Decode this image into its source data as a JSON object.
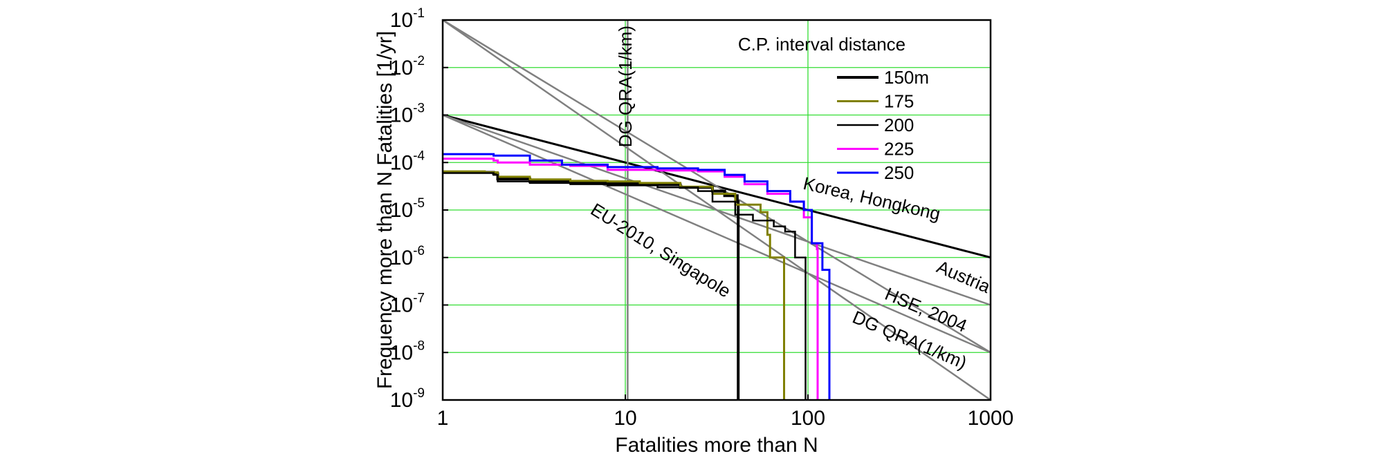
{
  "chart_data": {
    "type": "line",
    "title": "",
    "xlabel": "Fatalities more than N",
    "ylabel": "Frequency more than N Fatalities [1/yr]",
    "x_scale": "log",
    "y_scale": "log",
    "xlim": [
      1,
      1000
    ],
    "ylim": [
      1e-09,
      0.1
    ],
    "grid": true,
    "grid_color": "#33dd33",
    "x_ticks": [
      {
        "value": 1,
        "label": "1"
      },
      {
        "value": 10,
        "label": "10"
      },
      {
        "value": 100,
        "label": "100"
      },
      {
        "value": 1000,
        "label": "1000"
      }
    ],
    "y_ticks": [
      {
        "value": 1e-09,
        "base": "10",
        "exp": "-9"
      },
      {
        "value": 1e-08,
        "base": "10",
        "exp": "-8"
      },
      {
        "value": 1e-07,
        "base": "10",
        "exp": "-7"
      },
      {
        "value": 1e-06,
        "base": "10",
        "exp": "-6"
      },
      {
        "value": 1e-05,
        "base": "10",
        "exp": "-5"
      },
      {
        "value": 0.0001,
        "base": "10",
        "exp": "-4"
      },
      {
        "value": 0.001,
        "base": "10",
        "exp": "-3"
      },
      {
        "value": 0.01,
        "base": "10",
        "exp": "-2"
      },
      {
        "value": 0.1,
        "base": "10",
        "exp": "-1"
      }
    ],
    "legend": {
      "title": "C.P. interval distance",
      "placement": "top-right"
    },
    "criteria_lines": [
      {
        "label": "Korea, Hongkong",
        "color": "#000000",
        "points": [
          [
            1,
            0.001
          ],
          [
            1000,
            1e-06
          ]
        ]
      },
      {
        "label": "Austria",
        "color": "#808080",
        "points": [
          [
            1,
            0.001
          ],
          [
            1000,
            1e-07
          ]
        ]
      },
      {
        "label": "HSE, 2004",
        "color": "#808080",
        "points": [
          [
            1,
            0.1
          ],
          [
            1000,
            1e-08
          ]
        ]
      },
      {
        "label": "DG QRA(1/km)",
        "color": "#808080",
        "points": [
          [
            1,
            0.001
          ],
          [
            1000,
            1e-08
          ]
        ]
      },
      {
        "label": "EU-2010, Singapole",
        "color": "#808080",
        "points": [
          [
            1,
            0.1
          ],
          [
            1000,
            1e-09
          ]
        ]
      },
      {
        "label": "DG QRA(1/km)",
        "color": "#808080",
        "points": [
          [
            10.3,
            1e-09
          ],
          [
            10.3,
            0.1
          ]
        ]
      }
    ],
    "annotations": [
      {
        "text": "Korea, Hongkong",
        "at": [
          220,
          1.3e-05
        ],
        "angle": 13
      },
      {
        "text": "Austria",
        "at": [
          690,
          3e-07
        ],
        "angle": 23
      },
      {
        "text": "HSE, 2004",
        "at": [
          430,
          6e-08
        ],
        "angle": 23
      },
      {
        "text": "DG QRA(1/km)",
        "at": [
          350,
          1.4e-08
        ],
        "angle": 23
      },
      {
        "text": "EU-2010, Singapole",
        "at": [
          15,
          1.1e-06
        ],
        "angle": 32
      },
      {
        "text": "DG QRA(1/km)",
        "at": [
          10.8,
          0.004
        ],
        "angle": -90
      }
    ],
    "series": [
      {
        "name": "150m",
        "color": "#000000",
        "width": 4,
        "points": [
          [
            1,
            6.2e-05
          ],
          [
            1.9,
            5.8e-05
          ],
          [
            2,
            4.5e-05
          ],
          [
            3,
            4e-05
          ],
          [
            5,
            3.8e-05
          ],
          [
            8,
            3.6e-05
          ],
          [
            12,
            3.4e-05
          ],
          [
            20,
            3e-05
          ],
          [
            30,
            2.5e-05
          ],
          [
            35,
            2e-05
          ],
          [
            41,
            1.5e-05
          ],
          [
            41.5,
            1e-09
          ]
        ]
      },
      {
        "name": "175",
        "color": "#808000",
        "width": 3,
        "points": [
          [
            1,
            6.5e-05
          ],
          [
            1.7,
            6.2e-05
          ],
          [
            2,
            5e-05
          ],
          [
            3,
            4.4e-05
          ],
          [
            5,
            4.1e-05
          ],
          [
            8,
            4e-05
          ],
          [
            12,
            3.7e-05
          ],
          [
            20,
            3.1e-05
          ],
          [
            30,
            2.2e-05
          ],
          [
            40,
            1.3e-05
          ],
          [
            55,
            9e-06
          ],
          [
            60,
            3e-06
          ],
          [
            62,
            1e-06
          ],
          [
            73,
            1e-06
          ],
          [
            74,
            1e-09
          ]
        ]
      },
      {
        "name": "200",
        "color": "#000000",
        "width": 2.5,
        "points": [
          [
            1,
            6e-05
          ],
          [
            1.9,
            5.5e-05
          ],
          [
            2,
            4e-05
          ],
          [
            3,
            3.7e-05
          ],
          [
            5,
            3.5e-05
          ],
          [
            8,
            3.3e-05
          ],
          [
            15,
            3e-05
          ],
          [
            25,
            2.5e-05
          ],
          [
            30,
            1.5e-05
          ],
          [
            40,
            8e-06
          ],
          [
            50,
            6e-06
          ],
          [
            65,
            4.5e-06
          ],
          [
            75,
            3.5e-06
          ],
          [
            85,
            1e-06
          ],
          [
            96,
            1e-06
          ],
          [
            97,
            1e-09
          ]
        ]
      },
      {
        "name": "225",
        "color": "#ff00ff",
        "width": 3,
        "points": [
          [
            1,
            0.00012
          ],
          [
            1.9,
            0.00011
          ],
          [
            2,
            0.0001
          ],
          [
            3,
            9e-05
          ],
          [
            5,
            8.5e-05
          ],
          [
            8,
            7e-05
          ],
          [
            15,
            6.8e-05
          ],
          [
            25,
            6.5e-05
          ],
          [
            35,
            5e-05
          ],
          [
            45,
            3.5e-05
          ],
          [
            60,
            2.2e-05
          ],
          [
            80,
            1.5e-05
          ],
          [
            95,
            7e-06
          ],
          [
            105,
            2e-06
          ],
          [
            112,
            1.5e-06
          ],
          [
            113,
            1e-09
          ]
        ]
      },
      {
        "name": "250",
        "color": "#0000ff",
        "width": 3,
        "points": [
          [
            1,
            0.00015
          ],
          [
            1.9,
            0.00014
          ],
          [
            3,
            0.00011
          ],
          [
            4.5,
            9e-05
          ],
          [
            8,
            8e-05
          ],
          [
            15,
            7.5e-05
          ],
          [
            25,
            7e-05
          ],
          [
            35,
            5.5e-05
          ],
          [
            45,
            4e-05
          ],
          [
            60,
            2.5e-05
          ],
          [
            80,
            1.5e-05
          ],
          [
            95,
            1e-05
          ],
          [
            105,
            2e-06
          ],
          [
            120,
            5.5e-07
          ],
          [
            130,
            5.5e-07
          ],
          [
            131,
            1e-09
          ]
        ]
      }
    ]
  }
}
